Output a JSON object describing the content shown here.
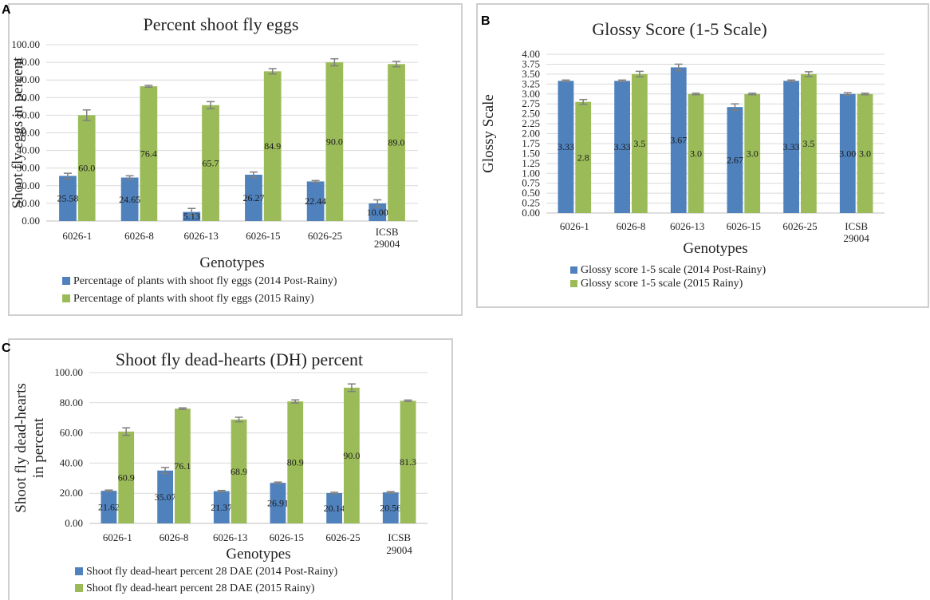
{
  "panel_labels": {
    "a": "A",
    "b": "B",
    "c": "C"
  },
  "colors": {
    "series1": "#4f81bd",
    "series2": "#9bbb59",
    "grid": "#d9d9d9",
    "error": "#7f7f7f"
  },
  "chart_data": [
    {
      "id": "a",
      "type": "bar",
      "title": "Percent shoot fly eggs",
      "xlabel": "Genotypes",
      "ylabel": "Shoot fly eggs in percent",
      "ylim": [
        0,
        100
      ],
      "ytick_step": 10,
      "ytick_decimals": 2,
      "categories": [
        "6026-1",
        "6026-8",
        "6026-13",
        "6026-15",
        "6026-25",
        "ICSB 29004"
      ],
      "series": [
        {
          "name": "Percentage of plants with shoot fly eggs (2014 Post-Rainy)",
          "values": [
            25.58,
            24.65,
            5.13,
            26.27,
            22.44,
            10.0
          ],
          "labels": [
            "25.58",
            "24.65",
            "5.13",
            "26.27",
            "22.44",
            "10.00"
          ],
          "errors": [
            1.5,
            1.0,
            2.0,
            1.5,
            0.5,
            2.0
          ]
        },
        {
          "name": "Percentage of plants with shoot fly eggs (2015 Rainy)",
          "values": [
            60.0,
            76.4,
            65.7,
            84.9,
            90.0,
            89.0
          ],
          "labels": [
            "60.0",
            "76.4",
            "65.7",
            "84.9",
            "90.0",
            "89.0"
          ],
          "errors": [
            3.0,
            0.5,
            2.0,
            1.5,
            2.0,
            1.5
          ]
        }
      ],
      "grid": true,
      "legend": "bottom"
    },
    {
      "id": "b",
      "type": "bar",
      "title": "Glossy Score (1-5 Scale)",
      "xlabel": "Genotypes",
      "ylabel": "Glossy Scale",
      "ylim": [
        0,
        4
      ],
      "ytick_step": 0.25,
      "ytick_decimals": 2,
      "categories": [
        "6026-1",
        "6026-8",
        "6026-13",
        "6026-15",
        "6026-25",
        "ICSB 29004"
      ],
      "series": [
        {
          "name": "Glossy score 1-5 scale (2014 Post-Rainy)",
          "values": [
            3.33,
            3.33,
            3.67,
            2.67,
            3.33,
            3.0
          ],
          "labels": [
            "3.33",
            "3.33",
            "3.67",
            "2.67",
            "3.33",
            "3.00"
          ],
          "errors": [
            0.02,
            0.02,
            0.08,
            0.08,
            0.02,
            0.03
          ]
        },
        {
          "name": "Glossy score 1-5 scale (2015 Rainy)",
          "values": [
            2.8,
            3.5,
            3.0,
            3.0,
            3.5,
            3.0
          ],
          "labels": [
            "2.8",
            "3.5",
            "3.0",
            "3.0",
            "3.5",
            "3.0"
          ],
          "errors": [
            0.06,
            0.07,
            0.02,
            0.02,
            0.06,
            0.02
          ]
        }
      ],
      "grid": true,
      "legend": "bottom"
    },
    {
      "id": "c",
      "type": "bar",
      "title": "Shoot fly dead-hearts (DH) percent",
      "xlabel": "Genotypes",
      "ylabel": "Shoot fly dead-hearts in percent",
      "ylim": [
        0,
        100
      ],
      "ytick_step": 20,
      "ytick_decimals": 2,
      "categories": [
        "6026-1",
        "6026-8",
        "6026-13",
        "6026-15",
        "6026-25",
        "ICSB 29004"
      ],
      "series": [
        {
          "name": "Shoot fly dead-heart percent 28 DAE (2014 Post-Rainy)",
          "values": [
            21.62,
            35.07,
            21.37,
            26.91,
            20.14,
            20.56
          ],
          "labels": [
            "21.62",
            "35.07",
            "21.37",
            "26.91",
            "20.14",
            "20.56"
          ],
          "errors": [
            0.5,
            2.0,
            0.5,
            0.5,
            0.5,
            0.5
          ]
        },
        {
          "name": "Shoot fly dead-heart percent 28 DAE (2015 Rainy)",
          "values": [
            60.9,
            76.1,
            68.9,
            80.9,
            90.0,
            81.3
          ],
          "labels": [
            "60.9",
            "76.1",
            "68.9",
            "80.9",
            "90.0",
            "81.3"
          ],
          "errors": [
            2.5,
            0.5,
            1.5,
            1.0,
            2.5,
            0.5
          ]
        }
      ],
      "grid": true,
      "legend": "bottom"
    }
  ]
}
